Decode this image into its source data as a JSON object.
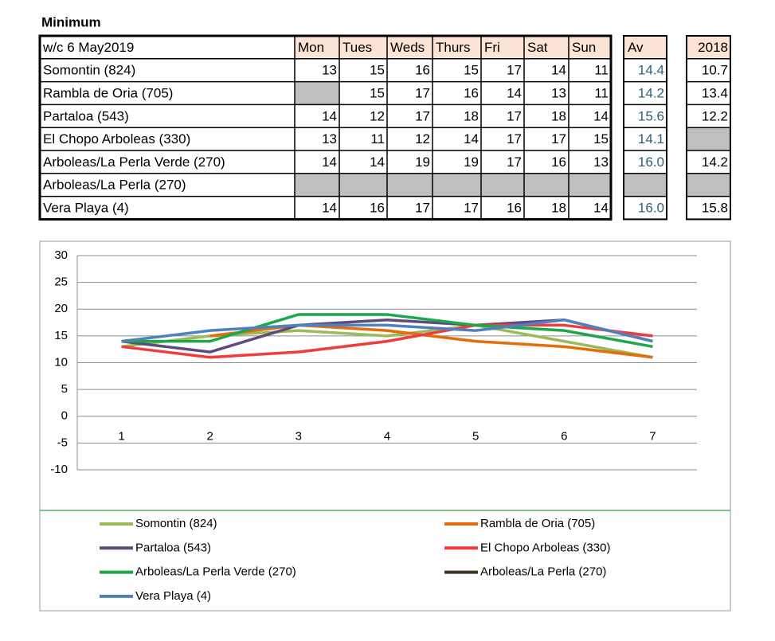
{
  "table": {
    "title": "Minimum",
    "header": [
      "w/c  6 May2019",
      "Mon",
      "Tues",
      "Weds",
      "Thurs",
      "Fri",
      "Sat",
      "Sun"
    ],
    "av_header": "Av",
    "year_header": "2018",
    "rows": [
      {
        "name": "Somontin (824)",
        "days": [
          "13",
          "15",
          "16",
          "15",
          "17",
          "14",
          "11"
        ],
        "av": "14.4",
        "year": "10.7"
      },
      {
        "name": "Rambla de Oria (705)",
        "days": [
          null,
          "15",
          "17",
          "16",
          "14",
          "13",
          "11"
        ],
        "av": "14.2",
        "year": "13.4"
      },
      {
        "name": "Partaloa (543)",
        "days": [
          "14",
          "12",
          "17",
          "18",
          "17",
          "18",
          "14"
        ],
        "av": "15.6",
        "year": "12.2"
      },
      {
        "name": "El Chopo Arboleas (330)",
        "days": [
          "13",
          "11",
          "12",
          "14",
          "17",
          "17",
          "15"
        ],
        "av": "14.1",
        "year": null
      },
      {
        "name": "Arboleas/La Perla Verde (270)",
        "days": [
          "14",
          "14",
          "19",
          "19",
          "17",
          "16",
          "13"
        ],
        "av": "16.0",
        "year": "14.2"
      },
      {
        "name": "Arboleas/La Perla (270)",
        "days": [
          null,
          null,
          null,
          null,
          null,
          null,
          null
        ],
        "av": null,
        "year": null
      },
      {
        "name": "Vera Playa (4)",
        "days": [
          "14",
          "16",
          "17",
          "17",
          "16",
          "18",
          "14"
        ],
        "av": "16.0",
        "year": "15.8"
      }
    ]
  },
  "chart_data": {
    "type": "line",
    "categories": [
      1,
      2,
      3,
      4,
      5,
      6,
      7
    ],
    "ylim": [
      -10,
      30
    ],
    "yticks": [
      -10,
      -5,
      0,
      5,
      10,
      15,
      20,
      25,
      30
    ],
    "grid": true,
    "series": [
      {
        "name": "Somontin (824)",
        "color": "#9bbb59",
        "values": [
          13,
          15,
          16,
          15,
          17,
          14,
          11
        ]
      },
      {
        "name": "Rambla de Oria (705)",
        "color": "#e46c0a",
        "values": [
          null,
          15,
          17,
          16,
          14,
          13,
          11
        ]
      },
      {
        "name": "Partaloa (543)",
        "color": "#604a7b",
        "values": [
          14,
          12,
          17,
          18,
          17,
          18,
          14
        ]
      },
      {
        "name": "El Chopo Arboleas (330)",
        "color": "#f03c3c",
        "values": [
          13,
          11,
          12,
          14,
          17,
          17,
          15
        ]
      },
      {
        "name": "Arboleas/La Perla Verde (270)",
        "color": "#1aa84a",
        "values": [
          14,
          14,
          19,
          19,
          17,
          16,
          13
        ]
      },
      {
        "name": "Arboleas/La Perla (270)",
        "color": "#3d3520",
        "values": [
          null,
          null,
          null,
          null,
          null,
          null,
          null
        ]
      },
      {
        "name": "Vera Playa (4)",
        "color": "#4f81bd",
        "values": [
          14,
          16,
          17,
          17,
          16,
          18,
          14
        ]
      }
    ]
  }
}
